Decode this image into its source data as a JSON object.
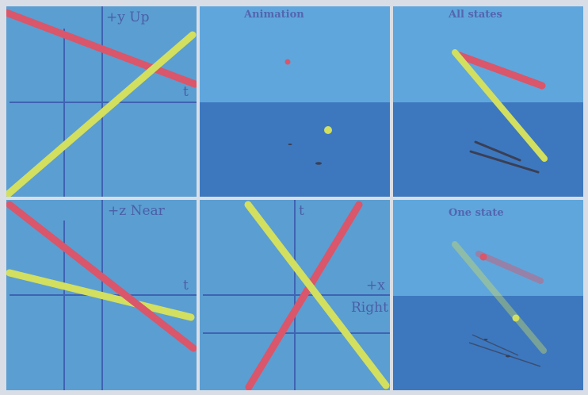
{
  "panels": {
    "yt": {
      "axis_label_y": "+y Up",
      "axis_label_t": "t"
    },
    "animation": {
      "title": "Animation"
    },
    "all_states": {
      "title": "All states"
    },
    "zt": {
      "axis_label_z": "+z Near",
      "axis_label_t": "t"
    },
    "xt": {
      "axis_label_t": "t",
      "axis_label_x_1": "+x",
      "axis_label_x_2": "Right"
    },
    "one_state": {
      "title": "One state"
    }
  },
  "colors": {
    "panel_bg": "#5b9ed1",
    "sky": "#5fa6dc",
    "floor": "#3d78bf",
    "axis": "#3f63b3",
    "red_rod": "#d9566b",
    "yellow_rod": "#d2df5f",
    "shadow": "#3a3f55"
  },
  "icons": {
    "red_ball": "red-sphere",
    "yellow_ball": "yellow-sphere"
  }
}
